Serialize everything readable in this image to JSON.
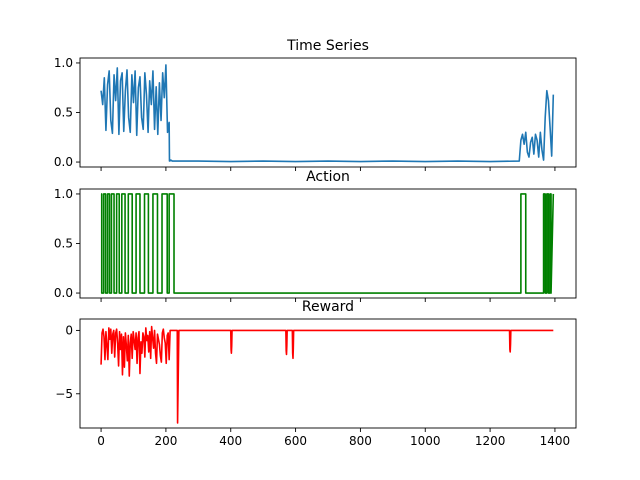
{
  "chart_data": [
    {
      "type": "line",
      "title": "Time Series",
      "ylim": [
        -0.05,
        1.05
      ],
      "xlim": [
        -65,
        1465
      ],
      "yticks": [
        0.0,
        0.5,
        1.0
      ],
      "ytick_labels": [
        "0.0",
        "0.5",
        "1.0"
      ],
      "xticks": [
        0,
        200,
        400,
        600,
        800,
        1000,
        1200,
        1400
      ],
      "color": "#1f77b4",
      "series": [
        {
          "x": [
            0,
            5,
            10,
            15,
            20,
            25,
            30,
            35,
            40,
            45,
            50,
            55,
            60,
            65,
            70,
            75,
            80,
            85,
            90,
            95,
            100,
            105,
            110,
            115,
            120,
            125,
            130,
            135,
            140,
            145,
            150,
            155,
            160,
            165,
            170,
            175,
            180,
            185,
            190,
            195,
            200,
            205,
            210,
            211,
            215,
            220,
            300,
            400,
            500,
            600,
            700,
            800,
            900,
            1000,
            1100,
            1200,
            1290,
            1295,
            1300,
            1305,
            1310,
            1315,
            1320,
            1325,
            1330,
            1335,
            1340,
            1345,
            1350,
            1355,
            1360,
            1365,
            1370,
            1375,
            1380,
            1385,
            1390,
            1395
          ],
          "y": [
            0.72,
            0.58,
            0.85,
            0.32,
            0.78,
            0.92,
            0.42,
            0.29,
            0.88,
            0.62,
            0.95,
            0.28,
            0.82,
            0.9,
            0.31,
            0.72,
            0.93,
            0.45,
            0.3,
            0.88,
            0.6,
            0.92,
            0.27,
            0.75,
            0.86,
            0.45,
            0.33,
            0.9,
            0.68,
            0.3,
            0.82,
            0.58,
            0.92,
            0.33,
            0.76,
            0.28,
            0.8,
            0.42,
            0.9,
            0.65,
            0.98,
            0.3,
            0.4,
            0.01,
            0.02,
            0.01,
            0.01,
            0.005,
            0.01,
            0.005,
            0.01,
            0.005,
            0.01,
            0.005,
            0.01,
            0.005,
            0.01,
            0.22,
            0.28,
            0.18,
            0.3,
            0.1,
            0.05,
            0.2,
            0.25,
            0.08,
            0.28,
            0.22,
            0.05,
            0.3,
            0.12,
            0.02,
            0.45,
            0.72,
            0.62,
            0.35,
            0.06,
            0.68
          ]
        }
      ]
    },
    {
      "type": "line",
      "title": "Action",
      "ylim": [
        -0.05,
        1.05
      ],
      "xlim": [
        -65,
        1465
      ],
      "yticks": [
        0.0,
        0.5,
        1.0
      ],
      "ytick_labels": [
        "0.0",
        "0.5",
        "1.0"
      ],
      "xticks": [
        0,
        200,
        400,
        600,
        800,
        1000,
        1200,
        1400
      ],
      "color": "#008000",
      "series": [
        {
          "x": [
            0,
            2,
            2,
            8,
            8,
            14,
            14,
            20,
            20,
            26,
            26,
            32,
            32,
            40,
            40,
            48,
            48,
            56,
            56,
            64,
            64,
            74,
            74,
            84,
            84,
            96,
            96,
            108,
            108,
            120,
            120,
            134,
            134,
            146,
            146,
            160,
            160,
            174,
            174,
            188,
            188,
            204,
            204,
            210,
            210,
            225,
            225,
            1295,
            1295,
            1310,
            1310,
            1365,
            1365,
            1370,
            1370,
            1375,
            1375,
            1380,
            1380,
            1385,
            1385,
            1388,
            1388,
            1395
          ],
          "y": [
            1,
            1,
            0,
            0,
            1,
            1,
            0,
            0,
            1,
            1,
            0,
            0,
            1,
            1,
            0,
            0,
            1,
            1,
            0,
            0,
            1,
            1,
            0,
            0,
            1,
            1,
            0,
            0,
            1,
            1,
            0,
            0,
            1,
            1,
            0,
            0,
            1,
            1,
            0,
            0,
            1,
            1,
            0,
            0,
            1,
            1,
            0,
            0,
            1,
            1,
            0,
            0,
            1,
            1,
            0,
            0,
            1,
            1,
            0,
            0,
            1,
            1,
            0,
            1
          ]
        }
      ]
    },
    {
      "type": "line",
      "title": "Reward",
      "ylim": [
        -7.7,
        0.9
      ],
      "xlim": [
        -65,
        1465
      ],
      "yticks": [
        0,
        -5
      ],
      "ytick_labels": [
        "0",
        "−5"
      ],
      "xticks": [
        0,
        200,
        400,
        600,
        800,
        1000,
        1200,
        1400
      ],
      "xtick_labels": [
        "0",
        "200",
        "400",
        "600",
        "800",
        "1000",
        "1200",
        "1400"
      ],
      "color": "#ff0000",
      "series": [
        {
          "x": [
            0,
            3,
            6,
            9,
            12,
            15,
            18,
            21,
            24,
            27,
            30,
            33,
            36,
            39,
            42,
            45,
            48,
            51,
            54,
            57,
            60,
            63,
            66,
            69,
            72,
            75,
            78,
            81,
            84,
            87,
            90,
            93,
            96,
            99,
            102,
            105,
            108,
            111,
            114,
            117,
            120,
            123,
            126,
            129,
            132,
            135,
            138,
            141,
            144,
            147,
            150,
            153,
            156,
            159,
            162,
            165,
            168,
            171,
            174,
            177,
            180,
            183,
            186,
            189,
            192,
            195,
            198,
            201,
            204,
            207,
            210,
            213,
            220,
            230,
            235,
            236,
            240,
            400,
            401,
            402,
            403,
            404,
            405,
            570,
            571,
            572,
            573,
            574,
            575,
            590,
            591,
            592,
            593,
            594,
            595,
            1260,
            1261,
            1262,
            1263,
            1264,
            1265,
            1395
          ],
          "y": [
            -2.7,
            -0.2,
            0.1,
            -0.5,
            -2.3,
            -0.1,
            -1.2,
            -2.3,
            0.2,
            -0.7,
            0.1,
            -1.8,
            -0.3,
            0.0,
            -2.1,
            -0.2,
            0.1,
            -1.0,
            -2.8,
            -0.1,
            -1.5,
            -0.3,
            -3.5,
            -0.5,
            -2.9,
            -0.2,
            -1.2,
            -2.4,
            -0.4,
            -3.6,
            -1.0,
            -0.3,
            -2.2,
            -0.1,
            -0.8,
            -1.5,
            -0.2,
            -2.6,
            -0.6,
            -0.1,
            -3.4,
            -0.9,
            -1.8,
            -0.2,
            -0.5,
            -2.1,
            0.2,
            -0.8,
            -0.4,
            -1.7,
            -0.1,
            -2.2,
            0.3,
            -0.6,
            -1.4,
            0.0,
            -1.8,
            -2.6,
            -0.3,
            -0.7,
            -1.1,
            -2.0,
            -2.5,
            -0.2,
            0.1,
            -0.6,
            -1.0,
            -2.6,
            -0.4,
            -0.2,
            -2.3,
            0.0,
            0.0,
            0.0,
            0.0,
            -7.3,
            0.0,
            0.0,
            -1.5,
            -1.8,
            -1.2,
            0.0,
            0.0,
            0.0,
            -1.6,
            -1.9,
            -1.2,
            0.0,
            0.0,
            0.0,
            -1.8,
            -2.2,
            -1.4,
            0.0,
            0.0,
            0.0,
            -1.5,
            -1.7,
            -1.1,
            0.0,
            0.0,
            0.0
          ]
        }
      ]
    }
  ]
}
